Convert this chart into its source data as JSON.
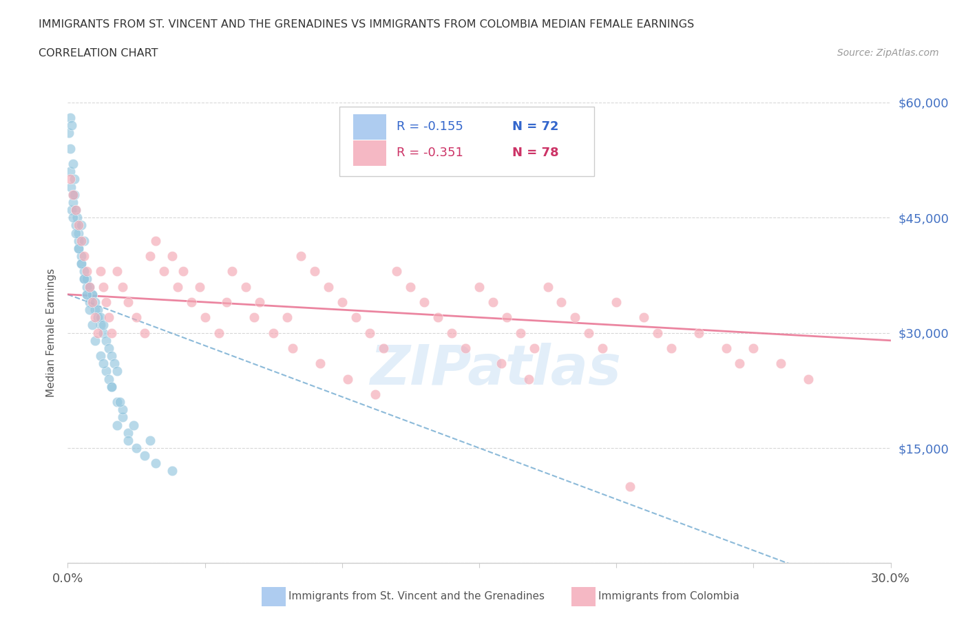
{
  "title_line1": "IMMIGRANTS FROM ST. VINCENT AND THE GRENADINES VS IMMIGRANTS FROM COLOMBIA MEDIAN FEMALE EARNINGS",
  "title_line2": "CORRELATION CHART",
  "source": "Source: ZipAtlas.com",
  "ylabel": "Median Female Earnings",
  "xlim": [
    0.0,
    0.3
  ],
  "ylim": [
    0,
    60000
  ],
  "xticks": [
    0.0,
    0.05,
    0.1,
    0.15,
    0.2,
    0.25,
    0.3
  ],
  "ytick_values": [
    0,
    15000,
    30000,
    45000,
    60000
  ],
  "ytick_labels": [
    "",
    "$15,000",
    "$30,000",
    "$45,000",
    "$60,000"
  ],
  "color_blue": "#92c5de",
  "color_blue_fill": "#b8d9ec",
  "color_pink": "#f4a7b3",
  "color_pink_fill": "#f8ccd3",
  "color_blue_line": "#5b9dc9",
  "color_pink_line": "#e87090",
  "legend_blue_R": "R = -0.155",
  "legend_blue_N": "N = 72",
  "legend_pink_R": "R = -0.351",
  "legend_pink_N": "N = 78",
  "watermark": "ZIPatlas",
  "blue_N": 72,
  "pink_N": 78,
  "blue_R": -0.155,
  "pink_R": -0.351,
  "blue_scatter_x": [
    0.0005,
    0.001,
    0.0015,
    0.001,
    0.0008,
    0.0012,
    0.0018,
    0.002,
    0.0015,
    0.0025,
    0.002,
    0.003,
    0.0025,
    0.003,
    0.004,
    0.0035,
    0.004,
    0.005,
    0.004,
    0.005,
    0.006,
    0.005,
    0.006,
    0.007,
    0.006,
    0.007,
    0.008,
    0.007,
    0.009,
    0.008,
    0.01,
    0.009,
    0.011,
    0.01,
    0.012,
    0.011,
    0.013,
    0.012,
    0.014,
    0.013,
    0.015,
    0.016,
    0.017,
    0.018,
    0.002,
    0.003,
    0.004,
    0.005,
    0.006,
    0.007,
    0.008,
    0.009,
    0.01,
    0.012,
    0.014,
    0.016,
    0.018,
    0.02,
    0.022,
    0.025,
    0.028,
    0.032,
    0.038,
    0.015,
    0.02,
    0.018,
    0.022,
    0.013,
    0.016,
    0.019,
    0.024,
    0.03
  ],
  "blue_scatter_y": [
    56000,
    58000,
    57000,
    54000,
    51000,
    49000,
    52000,
    48000,
    46000,
    50000,
    47000,
    44000,
    48000,
    46000,
    43000,
    45000,
    41000,
    44000,
    42000,
    40000,
    42000,
    39000,
    37000,
    35000,
    38000,
    36000,
    34000,
    37000,
    35000,
    36000,
    33000,
    35000,
    32000,
    34000,
    31000,
    33000,
    30000,
    32000,
    29000,
    31000,
    28000,
    27000,
    26000,
    25000,
    45000,
    43000,
    41000,
    39000,
    37000,
    35000,
    33000,
    31000,
    29000,
    27000,
    25000,
    23000,
    21000,
    19000,
    17000,
    15000,
    14000,
    13000,
    12000,
    24000,
    20000,
    18000,
    16000,
    26000,
    23000,
    21000,
    18000,
    16000
  ],
  "pink_scatter_x": [
    0.001,
    0.002,
    0.003,
    0.004,
    0.005,
    0.006,
    0.007,
    0.008,
    0.009,
    0.01,
    0.011,
    0.012,
    0.013,
    0.014,
    0.015,
    0.016,
    0.018,
    0.02,
    0.022,
    0.025,
    0.028,
    0.03,
    0.035,
    0.04,
    0.045,
    0.05,
    0.055,
    0.06,
    0.065,
    0.07,
    0.08,
    0.085,
    0.09,
    0.095,
    0.1,
    0.105,
    0.11,
    0.115,
    0.12,
    0.125,
    0.13,
    0.135,
    0.14,
    0.145,
    0.15,
    0.155,
    0.16,
    0.165,
    0.17,
    0.175,
    0.18,
    0.185,
    0.19,
    0.195,
    0.2,
    0.21,
    0.215,
    0.22,
    0.23,
    0.24,
    0.245,
    0.25,
    0.26,
    0.27,
    0.032,
    0.038,
    0.042,
    0.048,
    0.058,
    0.068,
    0.075,
    0.082,
    0.092,
    0.102,
    0.112,
    0.158,
    0.168,
    0.205
  ],
  "pink_scatter_y": [
    50000,
    48000,
    46000,
    44000,
    42000,
    40000,
    38000,
    36000,
    34000,
    32000,
    30000,
    38000,
    36000,
    34000,
    32000,
    30000,
    38000,
    36000,
    34000,
    32000,
    30000,
    40000,
    38000,
    36000,
    34000,
    32000,
    30000,
    38000,
    36000,
    34000,
    32000,
    40000,
    38000,
    36000,
    34000,
    32000,
    30000,
    28000,
    38000,
    36000,
    34000,
    32000,
    30000,
    28000,
    36000,
    34000,
    32000,
    30000,
    28000,
    36000,
    34000,
    32000,
    30000,
    28000,
    34000,
    32000,
    30000,
    28000,
    30000,
    28000,
    26000,
    28000,
    26000,
    24000,
    42000,
    40000,
    38000,
    36000,
    34000,
    32000,
    30000,
    28000,
    26000,
    24000,
    22000,
    26000,
    24000,
    10000
  ]
}
